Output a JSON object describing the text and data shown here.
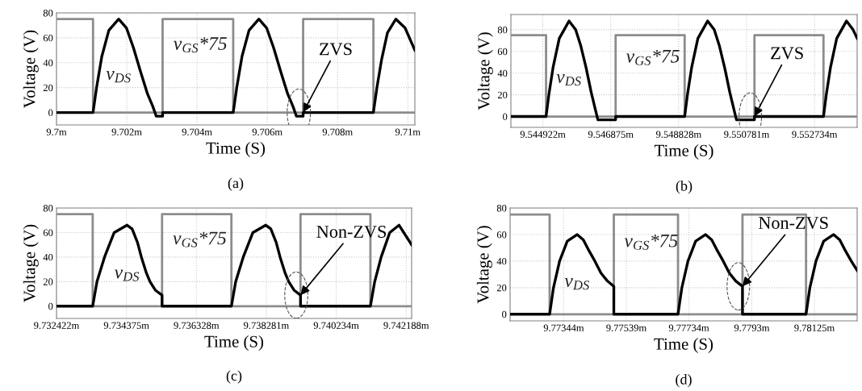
{
  "chart_data": [
    {
      "type": "line",
      "title": "(a)",
      "xlabel": "Time (S)",
      "ylabel": "Voltage (V)",
      "grid": true,
      "legend": false,
      "line_style": "solid",
      "xlim": [
        9.7,
        9.7102
      ],
      "xticks": [
        {
          "value": 9.7,
          "label": "9.7m"
        },
        {
          "value": 9.702,
          "label": "9.702m"
        },
        {
          "value": 9.704,
          "label": "9.704m"
        },
        {
          "value": 9.706,
          "label": "9.706m"
        },
        {
          "value": 9.708,
          "label": "9.708m"
        },
        {
          "value": 9.71,
          "label": "9.71m"
        }
      ],
      "ylim": [
        -10,
        80
      ],
      "yticks": [
        0,
        20,
        40,
        60,
        80
      ],
      "annotations": [
        {
          "text": "ZVS",
          "x": 9.70702,
          "y": 0
        }
      ],
      "series": [
        {
          "name": "v$_{GS}$*75",
          "color": "#8c8c8c",
          "x": [
            9.7,
            9.70104,
            9.70104,
            9.70302,
            9.70302,
            9.70503,
            9.70503,
            9.70702,
            9.70702,
            9.70902,
            9.70902,
            9.7102
          ],
          "values": [
            75,
            75,
            0,
            0,
            75,
            75,
            0,
            0,
            75,
            75,
            0,
            0
          ]
        },
        {
          "name": "v$_{DS}$",
          "color": "#000000",
          "x": [
            9.7,
            9.70104,
            9.70114,
            9.70129,
            9.70149,
            9.70177,
            9.70199,
            9.70219,
            9.70239,
            9.70259,
            9.70274,
            9.70284,
            9.70302,
            9.70302,
            9.70503,
            9.70513,
            9.70528,
            9.70548,
            9.70576,
            9.70598,
            9.70618,
            9.70638,
            9.70658,
            9.70673,
            9.70683,
            9.70702,
            9.70702,
            9.70902,
            9.70912,
            9.70925,
            9.70942,
            9.70966,
            9.70992,
            9.7102
          ],
          "values": [
            0,
            0,
            20,
            45,
            66,
            75,
            68,
            52,
            33,
            15,
            5,
            -3,
            -3,
            0,
            0,
            20,
            45,
            66,
            75,
            68,
            52,
            33,
            15,
            5,
            -3,
            -3,
            0,
            0,
            20,
            42,
            64,
            75,
            68,
            50
          ]
        }
      ]
    },
    {
      "type": "line",
      "title": "(b)",
      "xlabel": "Time (S)",
      "ylabel": "Voltage (V)",
      "grid": true,
      "legend": false,
      "line_style": "solid",
      "xlim": [
        9.544004,
        9.55396
      ],
      "xticks": [
        {
          "value": 9.544922,
          "label": "9.544922m"
        },
        {
          "value": 9.546875,
          "label": "9.546875m"
        },
        {
          "value": 9.548828,
          "label": "9.548828m"
        },
        {
          "value": 9.550781,
          "label": "9.550781m"
        },
        {
          "value": 9.552734,
          "label": "9.552734m"
        }
      ],
      "ylim": [
        -10,
        94
      ],
      "yticks": [
        0,
        20,
        40,
        60,
        80
      ],
      "annotations": [
        {
          "text": "ZVS",
          "x": 9.551007,
          "y": 0
        }
      ],
      "series": [
        {
          "name": "v$_{GS}$*75",
          "color": "#8c8c8c",
          "x": [
            9.544004,
            9.545015,
            9.545015,
            9.547015,
            9.547015,
            9.549,
            9.549,
            9.551007,
            9.551007,
            9.552992,
            9.552992,
            9.55396
          ],
          "values": [
            75,
            75,
            0,
            0,
            75,
            75,
            0,
            0,
            75,
            75,
            0,
            0
          ]
        },
        {
          "name": "v$_{DS}$",
          "color": "#000000",
          "x": [
            9.544004,
            9.545015,
            9.545095,
            9.545215,
            9.545395,
            9.545675,
            9.545865,
            9.546015,
            9.546165,
            9.546315,
            9.546435,
            9.546505,
            9.547015,
            9.547015,
            9.549,
            9.54908,
            9.5492,
            9.54938,
            9.54966,
            9.54985,
            9.55,
            9.55015,
            9.5503,
            9.55042,
            9.55049,
            9.551007,
            9.551007,
            9.552992,
            9.553072,
            9.553192,
            9.553372,
            9.553652,
            9.553842,
            9.55396
          ],
          "values": [
            0,
            0,
            20,
            45,
            72,
            88,
            80,
            65,
            45,
            22,
            6,
            -3,
            -3,
            0,
            0,
            20,
            45,
            72,
            88,
            80,
            65,
            45,
            22,
            6,
            -3,
            -3,
            0,
            0,
            20,
            45,
            72,
            88,
            80,
            72
          ]
        }
      ]
    },
    {
      "type": "line",
      "title": "(c)",
      "xlabel": "Time (S)",
      "ylabel": "Voltage (V)",
      "grid": true,
      "legend": false,
      "line_style": "solid",
      "xlim": [
        9.732422,
        9.74234
      ],
      "xticks": [
        {
          "value": 9.732422,
          "label": "9.732422m"
        },
        {
          "value": 9.734375,
          "label": "9.734375m"
        },
        {
          "value": 9.736328,
          "label": "9.736328m"
        },
        {
          "value": 9.738281,
          "label": "9.738281m"
        },
        {
          "value": 9.740234,
          "label": "9.740234m"
        },
        {
          "value": 9.742188,
          "label": "9.742188m"
        }
      ],
      "ylim": [
        -10,
        80
      ],
      "yticks": [
        0,
        20,
        40,
        60,
        80
      ],
      "annotations": [
        {
          "text": "Non-ZVS",
          "x": 9.739237,
          "y": 9
        }
      ],
      "series": [
        {
          "name": "v$_{GS}$*75",
          "color": "#8c8c8c",
          "x": [
            9.732422,
            9.733433,
            9.733433,
            9.73537,
            9.73537,
            9.737307,
            9.737307,
            9.739237,
            9.739237,
            9.741189,
            9.741189,
            9.74234
          ],
          "values": [
            75,
            75,
            0,
            0,
            75,
            75,
            0,
            0,
            75,
            75,
            0,
            0
          ]
        },
        {
          "name": "v$_{DS}$",
          "color": "#000000",
          "x": [
            9.732422,
            9.733433,
            9.733553,
            9.733763,
            9.734033,
            9.734393,
            9.734533,
            9.734683,
            9.734793,
            9.734933,
            9.735033,
            9.735183,
            9.73537,
            9.73537,
            9.737307,
            9.737427,
            9.737637,
            9.737907,
            9.738267,
            9.738407,
            9.738557,
            9.738667,
            9.738807,
            9.738907,
            9.739057,
            9.739237,
            9.739237,
            9.741189,
            9.741309,
            9.741489,
            9.741729,
            9.741989,
            9.74234
          ],
          "values": [
            0,
            0,
            20,
            40,
            60,
            66,
            63,
            52,
            40,
            27,
            20,
            13,
            9,
            0,
            0,
            20,
            40,
            60,
            66,
            63,
            52,
            40,
            27,
            20,
            13,
            9,
            0,
            0,
            20,
            40,
            60,
            66,
            50
          ]
        }
      ]
    },
    {
      "type": "line",
      "title": "(d)",
      "xlabel": "Time (S)",
      "ylabel": "Voltage (V)",
      "grid": true,
      "legend": false,
      "line_style": "solid",
      "xlim": [
        9.771769,
        9.782583
      ],
      "xticks": [
        {
          "value": 9.77344,
          "label": "9.77344m"
        },
        {
          "value": 9.77539,
          "label": "9.77539m"
        },
        {
          "value": 9.77734,
          "label": "9.77734m"
        },
        {
          "value": 9.7793,
          "label": "9.7793m"
        },
        {
          "value": 9.78125,
          "label": "9.78125m"
        }
      ],
      "ylim": [
        -5,
        80
      ],
      "yticks": [
        0,
        20,
        40,
        60,
        80
      ],
      "annotations": [
        {
          "text": "Non-ZVS",
          "x": 9.77901,
          "y": 21
        }
      ],
      "series": [
        {
          "name": "v$_{GS}$*75",
          "color": "#8c8c8c",
          "x": [
            9.771769,
            9.773001,
            9.773001,
            9.775001,
            9.775001,
            9.777001,
            9.777001,
            9.77901,
            9.77901,
            9.78099,
            9.78099,
            9.782583
          ],
          "values": [
            75,
            75,
            0,
            0,
            75,
            75,
            0,
            0,
            75,
            75,
            0,
            0
          ]
        },
        {
          "name": "v$_{DS}$",
          "color": "#000000",
          "x": [
            9.771769,
            9.773001,
            9.773121,
            9.773311,
            9.773551,
            9.773861,
            9.774051,
            9.774201,
            9.774411,
            9.774601,
            9.774801,
            9.775001,
            9.775001,
            9.777001,
            9.777121,
            9.777311,
            9.777551,
            9.777861,
            9.778051,
            9.778201,
            9.778411,
            9.778601,
            9.778801,
            9.77901,
            9.77901,
            9.78099,
            9.78111,
            9.7813,
            9.78154,
            9.78185,
            9.78204,
            9.78219,
            9.7824,
            9.782583
          ],
          "values": [
            0,
            0,
            20,
            40,
            55,
            60,
            56,
            49,
            40,
            31,
            25,
            21,
            0,
            0,
            20,
            40,
            55,
            60,
            56,
            49,
            40,
            31,
            25,
            21,
            0,
            0,
            20,
            40,
            55,
            60,
            56,
            49,
            40,
            33
          ]
        }
      ]
    }
  ]
}
